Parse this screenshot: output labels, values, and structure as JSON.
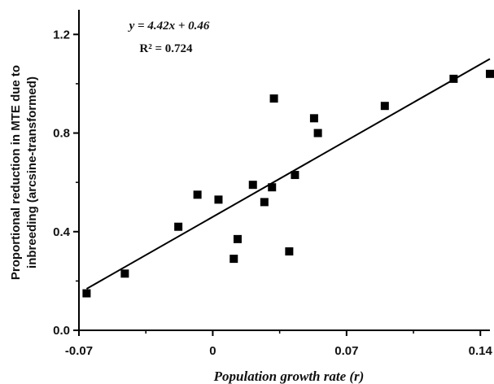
{
  "chart_data": {
    "type": "scatter",
    "title": "",
    "xlabel": "Population growth rate (r)",
    "ylabel_line1": "Proportional reduction in MTE due to",
    "ylabel_line2": "inbreeding (arcsine-transformed)",
    "xlim": [
      -0.07,
      0.145
    ],
    "ylim": [
      0.0,
      1.3
    ],
    "x_ticks": [
      {
        "value": -0.07,
        "label": "-0.07"
      },
      {
        "value": 0.0,
        "label": "0"
      },
      {
        "value": 0.07,
        "label": "0.07"
      },
      {
        "value": 0.14,
        "label": "0.14"
      }
    ],
    "y_ticks": [
      {
        "value": 0.0,
        "label": "0.0"
      },
      {
        "value": 0.4,
        "label": "0.4"
      },
      {
        "value": 0.8,
        "label": "0.8"
      },
      {
        "value": 1.2,
        "label": "1.2"
      }
    ],
    "grid": false,
    "series": [
      {
        "points": [
          {
            "x": -0.066,
            "y": 0.15
          },
          {
            "x": -0.046,
            "y": 0.23
          },
          {
            "x": -0.018,
            "y": 0.42
          },
          {
            "x": -0.008,
            "y": 0.55
          },
          {
            "x": 0.003,
            "y": 0.53
          },
          {
            "x": 0.011,
            "y": 0.29
          },
          {
            "x": 0.013,
            "y": 0.37
          },
          {
            "x": 0.021,
            "y": 0.59
          },
          {
            "x": 0.027,
            "y": 0.52
          },
          {
            "x": 0.031,
            "y": 0.58
          },
          {
            "x": 0.032,
            "y": 0.94
          },
          {
            "x": 0.04,
            "y": 0.32
          },
          {
            "x": 0.043,
            "y": 0.63
          },
          {
            "x": 0.053,
            "y": 0.86
          },
          {
            "x": 0.055,
            "y": 0.8
          },
          {
            "x": 0.09,
            "y": 0.91
          },
          {
            "x": 0.126,
            "y": 1.02
          },
          {
            "x": 0.145,
            "y": 1.04
          }
        ]
      }
    ],
    "fit_line": {
      "slope": 4.42,
      "intercept": 0.46,
      "x_range": [
        -0.066,
        0.145
      ]
    },
    "annotations": {
      "equation": "y = 4.42x + 0.46",
      "r2": "R² = 0.724"
    },
    "colors": {
      "marker": "#000000",
      "line": "#000000",
      "axis": "#000000"
    }
  }
}
